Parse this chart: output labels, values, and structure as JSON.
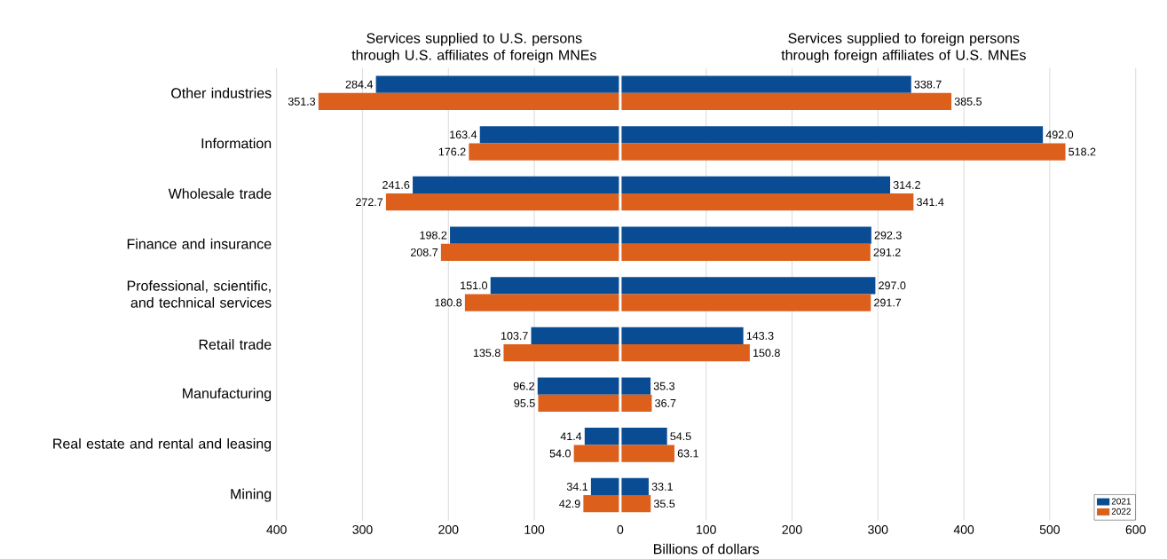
{
  "chart_data": {
    "type": "bar",
    "orientation": "horizontal",
    "xlabel": "Billions of dollars",
    "annotations": [
      "Services supplied to U.S. persons through U.S. affiliates of foreign MNEs",
      "Services supplied to foreign persons through foreign affiliates of U.S. MNEs"
    ],
    "categories": [
      "Other industries",
      "Information",
      "Wholesale trade",
      "Finance and insurance",
      "Professional, scientific, and technical services",
      "Retail trade",
      "Manufacturing",
      "Real estate and rental and leasing",
      "Mining"
    ],
    "series": [
      {
        "color": "#0a4c94",
        "values": [
          284.4,
          163.4,
          241.6,
          198.2,
          151.0,
          103.7,
          96.2,
          41.4,
          34.1
        ],
        "base": [
          -284.4,
          -163.4,
          -241.6,
          -198.2,
          -151.0,
          -103.7,
          -96.2,
          -41.4,
          -34.1
        ],
        "value_labels": [
          "284.4",
          "163.4",
          "241.6",
          "198.2",
          "151.0",
          "103.7",
          "96.2",
          "41.4",
          "34.1"
        ]
      },
      {
        "color": "#dc5f1c",
        "values": [
          351.3,
          176.2,
          272.7,
          208.7,
          180.8,
          135.8,
          95.5,
          54.0,
          42.9
        ],
        "base": [
          -351.3,
          -176.2,
          -272.7,
          -208.7,
          -180.8,
          -135.8,
          -95.5,
          -54.0,
          -42.9
        ],
        "value_labels": [
          "351.3",
          "176.2",
          "272.7",
          "208.7",
          "180.8",
          "135.8",
          "95.5",
          "54.0",
          "42.9"
        ]
      },
      {
        "name": "2021",
        "color": "#0a4c94",
        "values": [
          338.7,
          492.0,
          314.2,
          292.3,
          297.0,
          143.3,
          35.3,
          54.5,
          33.1
        ],
        "value_labels": [
          "338.7",
          "492.0",
          "314.2",
          "292.3",
          "297.0",
          "143.3",
          "35.3",
          "54.5",
          "33.1"
        ]
      },
      {
        "name": "2022",
        "color": "#dc5f1c",
        "values": [
          385.5,
          518.2,
          341.4,
          291.2,
          291.7,
          150.8,
          36.7,
          63.1,
          35.5
        ],
        "value_labels": [
          "385.5",
          "518.2",
          "341.4",
          "291.2",
          "291.7",
          "150.8",
          "36.7",
          "63.1",
          "35.5"
        ]
      }
    ],
    "xlim": [
      -400,
      600
    ],
    "xticks": [
      {
        "value": -400,
        "label": "400"
      },
      {
        "value": -300,
        "label": "300"
      },
      {
        "value": -200,
        "label": "200"
      },
      {
        "value": -100,
        "label": "100"
      },
      0,
      100,
      200,
      300,
      400,
      500,
      600
    ],
    "ref_lines": [
      {
        "axis": "x",
        "value": 0,
        "color": "#ffffff"
      }
    ],
    "grid": "x",
    "legend": "bottom right"
  }
}
